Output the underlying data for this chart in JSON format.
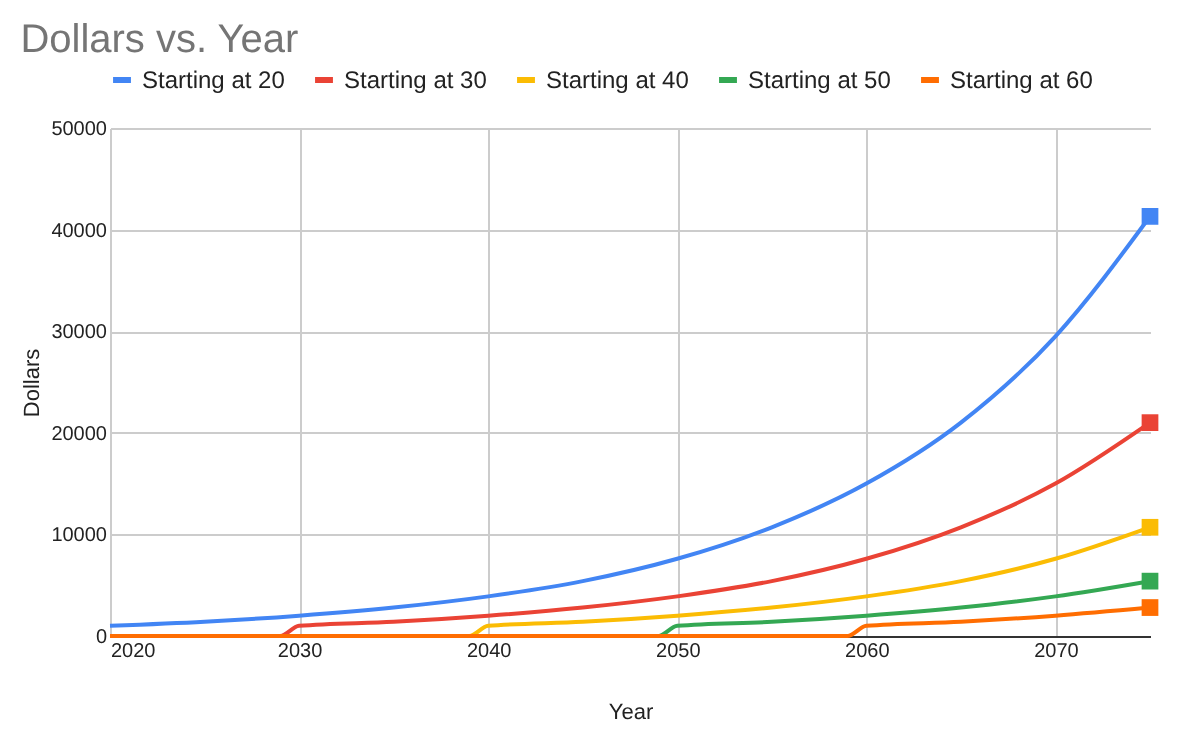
{
  "chart_data": {
    "type": "line",
    "title": "Dollars vs. Year",
    "xlabel": "Year",
    "ylabel": "Dollars",
    "xlim": [
      2020,
      2075
    ],
    "xticks": [
      2020,
      2030,
      2040,
      2050,
      2060,
      2070
    ],
    "ylim": [
      0,
      50000
    ],
    "yticks": [
      0,
      10000,
      20000,
      30000,
      40000,
      50000
    ],
    "grid": true,
    "legend": "top",
    "line_style": "solid",
    "series": [
      {
        "name": "Starting at 20",
        "color": "#4285f4",
        "x": [
          2020,
          2025,
          2030,
          2035,
          2040,
          2045,
          2050,
          2055,
          2060,
          2065,
          2070,
          2075
        ],
        "values": [
          1000,
          1400,
          2000,
          2800,
          3900,
          5400,
          7600,
          10700,
          15000,
          21000,
          29500,
          41300
        ]
      },
      {
        "name": "Starting at 30",
        "color": "#ea4335",
        "x": [
          2020,
          2029,
          2030,
          2035,
          2040,
          2045,
          2050,
          2055,
          2060,
          2065,
          2070,
          2075
        ],
        "values": [
          0,
          0,
          1000,
          1400,
          2000,
          2800,
          3900,
          5400,
          7600,
          10700,
          15000,
          21000
        ]
      },
      {
        "name": "Starting at 40",
        "color": "#fbbc04",
        "x": [
          2020,
          2039,
          2040,
          2045,
          2050,
          2055,
          2060,
          2065,
          2070,
          2075
        ],
        "values": [
          0,
          0,
          1000,
          1400,
          2000,
          2800,
          3900,
          5400,
          7600,
          10700
        ]
      },
      {
        "name": "Starting at 50",
        "color": "#34a853",
        "x": [
          2020,
          2049,
          2050,
          2055,
          2060,
          2065,
          2070,
          2075
        ],
        "values": [
          0,
          0,
          1000,
          1400,
          2000,
          2800,
          3900,
          5400
        ]
      },
      {
        "name": "Starting at 60",
        "color": "#ff6d01",
        "x": [
          2020,
          2059,
          2060,
          2065,
          2070,
          2075
        ],
        "values": [
          0,
          0,
          1000,
          1400,
          2000,
          2800
        ]
      }
    ]
  }
}
